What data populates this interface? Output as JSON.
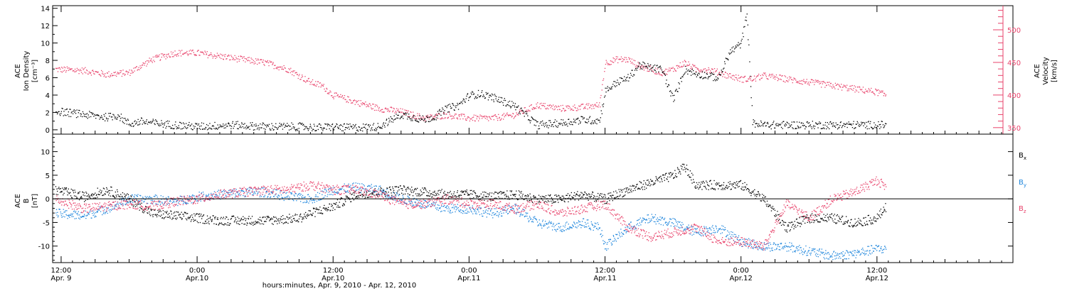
{
  "colors": {
    "black": "#000000",
    "velocity": "#e8436b",
    "by": "#1f86dc",
    "bz": "#e8436b"
  },
  "xaxis": {
    "title": "hours:minutes, Apr.  9, 2010 - Apr. 12, 2010",
    "range_hours": [
      -0.75,
      84.0
    ],
    "ticks": [
      {
        "h": 0,
        "time": "12:00",
        "date": "Apr. 9"
      },
      {
        "h": 12,
        "time": "0:00",
        "date": "Apr.10"
      },
      {
        "h": 24,
        "time": "12:00",
        "date": "Apr.10"
      },
      {
        "h": 36,
        "time": "0:00",
        "date": "Apr.11"
      },
      {
        "h": 48,
        "time": "12:00",
        "date": "Apr.11"
      },
      {
        "h": 60,
        "time": "0:00",
        "date": "Apr.12"
      },
      {
        "h": 72,
        "time": "12:00",
        "date": "Apr.12"
      }
    ]
  },
  "chart_data": [
    {
      "type": "scatter",
      "panel": "top",
      "left_axis": {
        "label_lines": [
          "ACE",
          "Ion Density",
          "[cm⁻³]"
        ],
        "ylim": [
          -0.5,
          14.3
        ],
        "ticks": [
          0,
          2,
          4,
          6,
          8,
          10,
          12,
          14
        ]
      },
      "right_axis": {
        "label_lines": [
          "ACE",
          "Velocity",
          "[km/s]"
        ],
        "ylim": [
          340,
          537
        ],
        "ticks": [
          350,
          400,
          450,
          500
        ]
      },
      "series": [
        {
          "key": "density",
          "axis": "left",
          "x": [
            -0.5,
            2,
            4,
            5,
            6,
            7,
            9,
            12,
            15,
            18,
            21,
            23,
            24,
            25,
            26,
            28,
            30,
            32,
            33,
            34,
            35,
            36,
            37,
            38,
            40,
            42,
            44,
            46,
            47.5,
            48,
            49,
            50,
            51,
            52,
            53,
            54,
            55,
            56,
            57,
            58,
            59,
            60,
            60.5,
            61,
            62,
            64,
            66,
            68,
            70,
            72,
            72.8
          ],
          "y": [
            2.2,
            1.8,
            1.5,
            1.7,
            0.7,
            1.0,
            0.7,
            0.4,
            0.6,
            0.4,
            0.4,
            0.3,
            0.4,
            0.3,
            0.3,
            0.4,
            1.8,
            1.2,
            1.6,
            2.5,
            2.8,
            4.0,
            4.2,
            3.8,
            2.8,
            0.6,
            0.8,
            1.2,
            1.1,
            4.5,
            5.5,
            6.0,
            7.5,
            7.2,
            7.0,
            3.5,
            7.0,
            6.5,
            6.3,
            6.0,
            9.0,
            10.0,
            13.5,
            0.8,
            0.6,
            0.6,
            0.6,
            0.6,
            0.6,
            0.6,
            0.6
          ]
        },
        {
          "key": "velocity",
          "axis": "right",
          "x": [
            -0.5,
            2,
            4,
            6,
            8,
            10,
            12,
            14,
            16,
            18,
            20,
            22,
            23,
            24,
            26,
            28,
            30,
            32,
            34,
            36,
            38,
            40,
            42,
            44,
            46,
            47.5,
            48,
            49,
            50,
            51,
            52,
            53,
            54,
            55,
            56,
            57,
            58,
            59,
            60,
            61,
            62,
            64,
            66,
            68,
            70,
            72,
            72.8
          ],
          "y": [
            440,
            438,
            432,
            435,
            455,
            465,
            465,
            460,
            455,
            450,
            440,
            420,
            415,
            400,
            390,
            380,
            375,
            365,
            370,
            365,
            365,
            370,
            385,
            380,
            382,
            385,
            450,
            455,
            455,
            445,
            440,
            435,
            440,
            450,
            440,
            440,
            435,
            430,
            425,
            425,
            430,
            425,
            420,
            415,
            410,
            405,
            400
          ]
        }
      ]
    },
    {
      "type": "scatter",
      "panel": "bottom",
      "left_axis": {
        "label_lines": [
          "ACE",
          "B",
          "[nT]"
        ],
        "ylim": [
          -13.5,
          13.7
        ],
        "ticks": [
          -10,
          -5,
          0,
          5,
          10
        ]
      },
      "legend": [
        "Bx",
        "By",
        "Bz"
      ],
      "series": [
        {
          "key": "Bx",
          "name": "Bx",
          "x": [
            -0.5,
            2,
            4,
            6,
            8,
            10,
            12,
            14,
            18,
            21,
            22,
            24,
            26,
            28,
            30,
            32,
            34,
            36,
            38,
            40,
            42,
            44,
            46,
            48,
            50,
            52,
            54,
            55,
            56,
            58,
            60,
            62,
            64,
            66,
            68,
            70,
            72,
            72.8
          ],
          "y": [
            2.0,
            0.5,
            2.0,
            0.0,
            -3.0,
            -3.5,
            -4.0,
            -4.5,
            -4.5,
            -4.0,
            -3.0,
            -1.5,
            1.0,
            1.5,
            2.0,
            1.5,
            1.0,
            1.0,
            0.5,
            1.0,
            0.0,
            0.0,
            1.0,
            0.0,
            2.0,
            3.5,
            5.0,
            7.0,
            3.0,
            3.0,
            3.0,
            0.0,
            -6.0,
            -4.0,
            -4.0,
            -5.0,
            -4.0,
            -1.5
          ]
        },
        {
          "key": "By",
          "name": "By",
          "x": [
            -0.5,
            2,
            4,
            6,
            8,
            10,
            12,
            14,
            16,
            18,
            20,
            22,
            24,
            26,
            28,
            30,
            32,
            34,
            36,
            38,
            40,
            42,
            44,
            46,
            47.5,
            48,
            49,
            50,
            52,
            54,
            56,
            58,
            60,
            62,
            64,
            66,
            68,
            70,
            72,
            72.8
          ],
          "y": [
            -3.0,
            -3.5,
            -2.0,
            0.0,
            0.0,
            -0.5,
            0.5,
            1.0,
            1.5,
            1.5,
            0.5,
            0.0,
            2.0,
            2.5,
            2.0,
            0.0,
            -1.0,
            -2.0,
            -2.0,
            -3.0,
            -2.0,
            -5.0,
            -6.0,
            -5.0,
            -6.0,
            -10.0,
            -8.0,
            -6.0,
            -4.0,
            -5.0,
            -7.0,
            -6.0,
            -9.0,
            -10.0,
            -10.0,
            -11.0,
            -12.0,
            -11.5,
            -10.5,
            -10.5
          ]
        },
        {
          "key": "Bz",
          "name": "Bz",
          "x": [
            -0.5,
            2,
            4,
            6,
            8,
            10,
            12,
            14,
            16,
            18,
            20,
            22,
            24,
            26,
            28,
            30,
            32,
            34,
            36,
            38,
            40,
            42,
            44,
            46,
            48,
            50,
            52,
            54,
            56,
            58,
            60,
            62,
            64,
            66,
            68,
            70,
            72,
            72.8
          ],
          "y": [
            0.0,
            -2.0,
            -1.5,
            -1.0,
            -1.5,
            -0.5,
            0.0,
            1.0,
            1.5,
            2.0,
            2.0,
            3.0,
            2.0,
            2.0,
            1.0,
            -1.0,
            -1.0,
            0.0,
            -1.0,
            -1.0,
            -2.0,
            -1.0,
            -3.0,
            -2.0,
            -1.0,
            -6.0,
            -8.0,
            -7.0,
            -6.0,
            -9.0,
            -9.0,
            -10.0,
            -1.0,
            -4.0,
            0.0,
            1.5,
            4.0,
            2.5
          ]
        }
      ]
    }
  ]
}
